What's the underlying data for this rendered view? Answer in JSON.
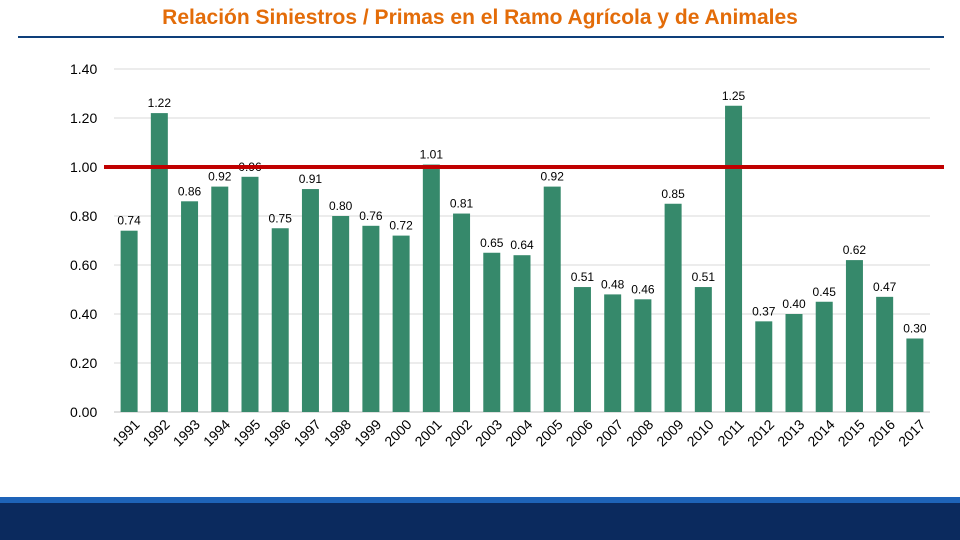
{
  "title": "Relación Siniestros / Primas en el Ramo Agrícola y de Animales",
  "colors": {
    "title": "#e36c09",
    "bar": "#36896b",
    "reference_line": "#c00000",
    "footer": "#0b2a5e"
  },
  "chart_data": {
    "type": "bar",
    "title": "Relación Siniestros / Primas en el Ramo Agrícola y de Animales",
    "xlabel": "",
    "ylabel": "",
    "ylim": [
      0,
      1.4
    ],
    "yticks": [
      "0.00",
      "0.20",
      "0.40",
      "0.60",
      "0.80",
      "1.00",
      "1.20",
      "1.40"
    ],
    "grid": true,
    "reference_line": 1.0,
    "categories": [
      "1991",
      "1992",
      "1993",
      "1994",
      "1995",
      "1996",
      "1997",
      "1998",
      "1999",
      "2000",
      "2001",
      "2002",
      "2003",
      "2004",
      "2005",
      "2006",
      "2007",
      "2008",
      "2009",
      "2010",
      "2011",
      "2012",
      "2013",
      "2014",
      "2015",
      "2016",
      "2017"
    ],
    "values": [
      0.74,
      1.22,
      0.86,
      0.92,
      0.96,
      0.75,
      0.91,
      0.8,
      0.76,
      0.72,
      1.01,
      0.81,
      0.65,
      0.64,
      0.92,
      0.51,
      0.48,
      0.46,
      0.85,
      0.51,
      1.25,
      0.37,
      0.4,
      0.45,
      0.62,
      0.47,
      0.3
    ],
    "labels": [
      "0.74",
      "1.22",
      "0.86",
      "0.92",
      "0.96",
      "0.75",
      "0.91",
      "0.80",
      "0.76",
      "0.72",
      "1.01",
      "0.81",
      "0.65",
      "0.64",
      "0.92",
      "0.51",
      "0.48",
      "0.46",
      "0.85",
      "0.51",
      "1.25",
      "0.37",
      "0.40",
      "0.45",
      "0.62",
      "0.47",
      "0.30"
    ]
  }
}
